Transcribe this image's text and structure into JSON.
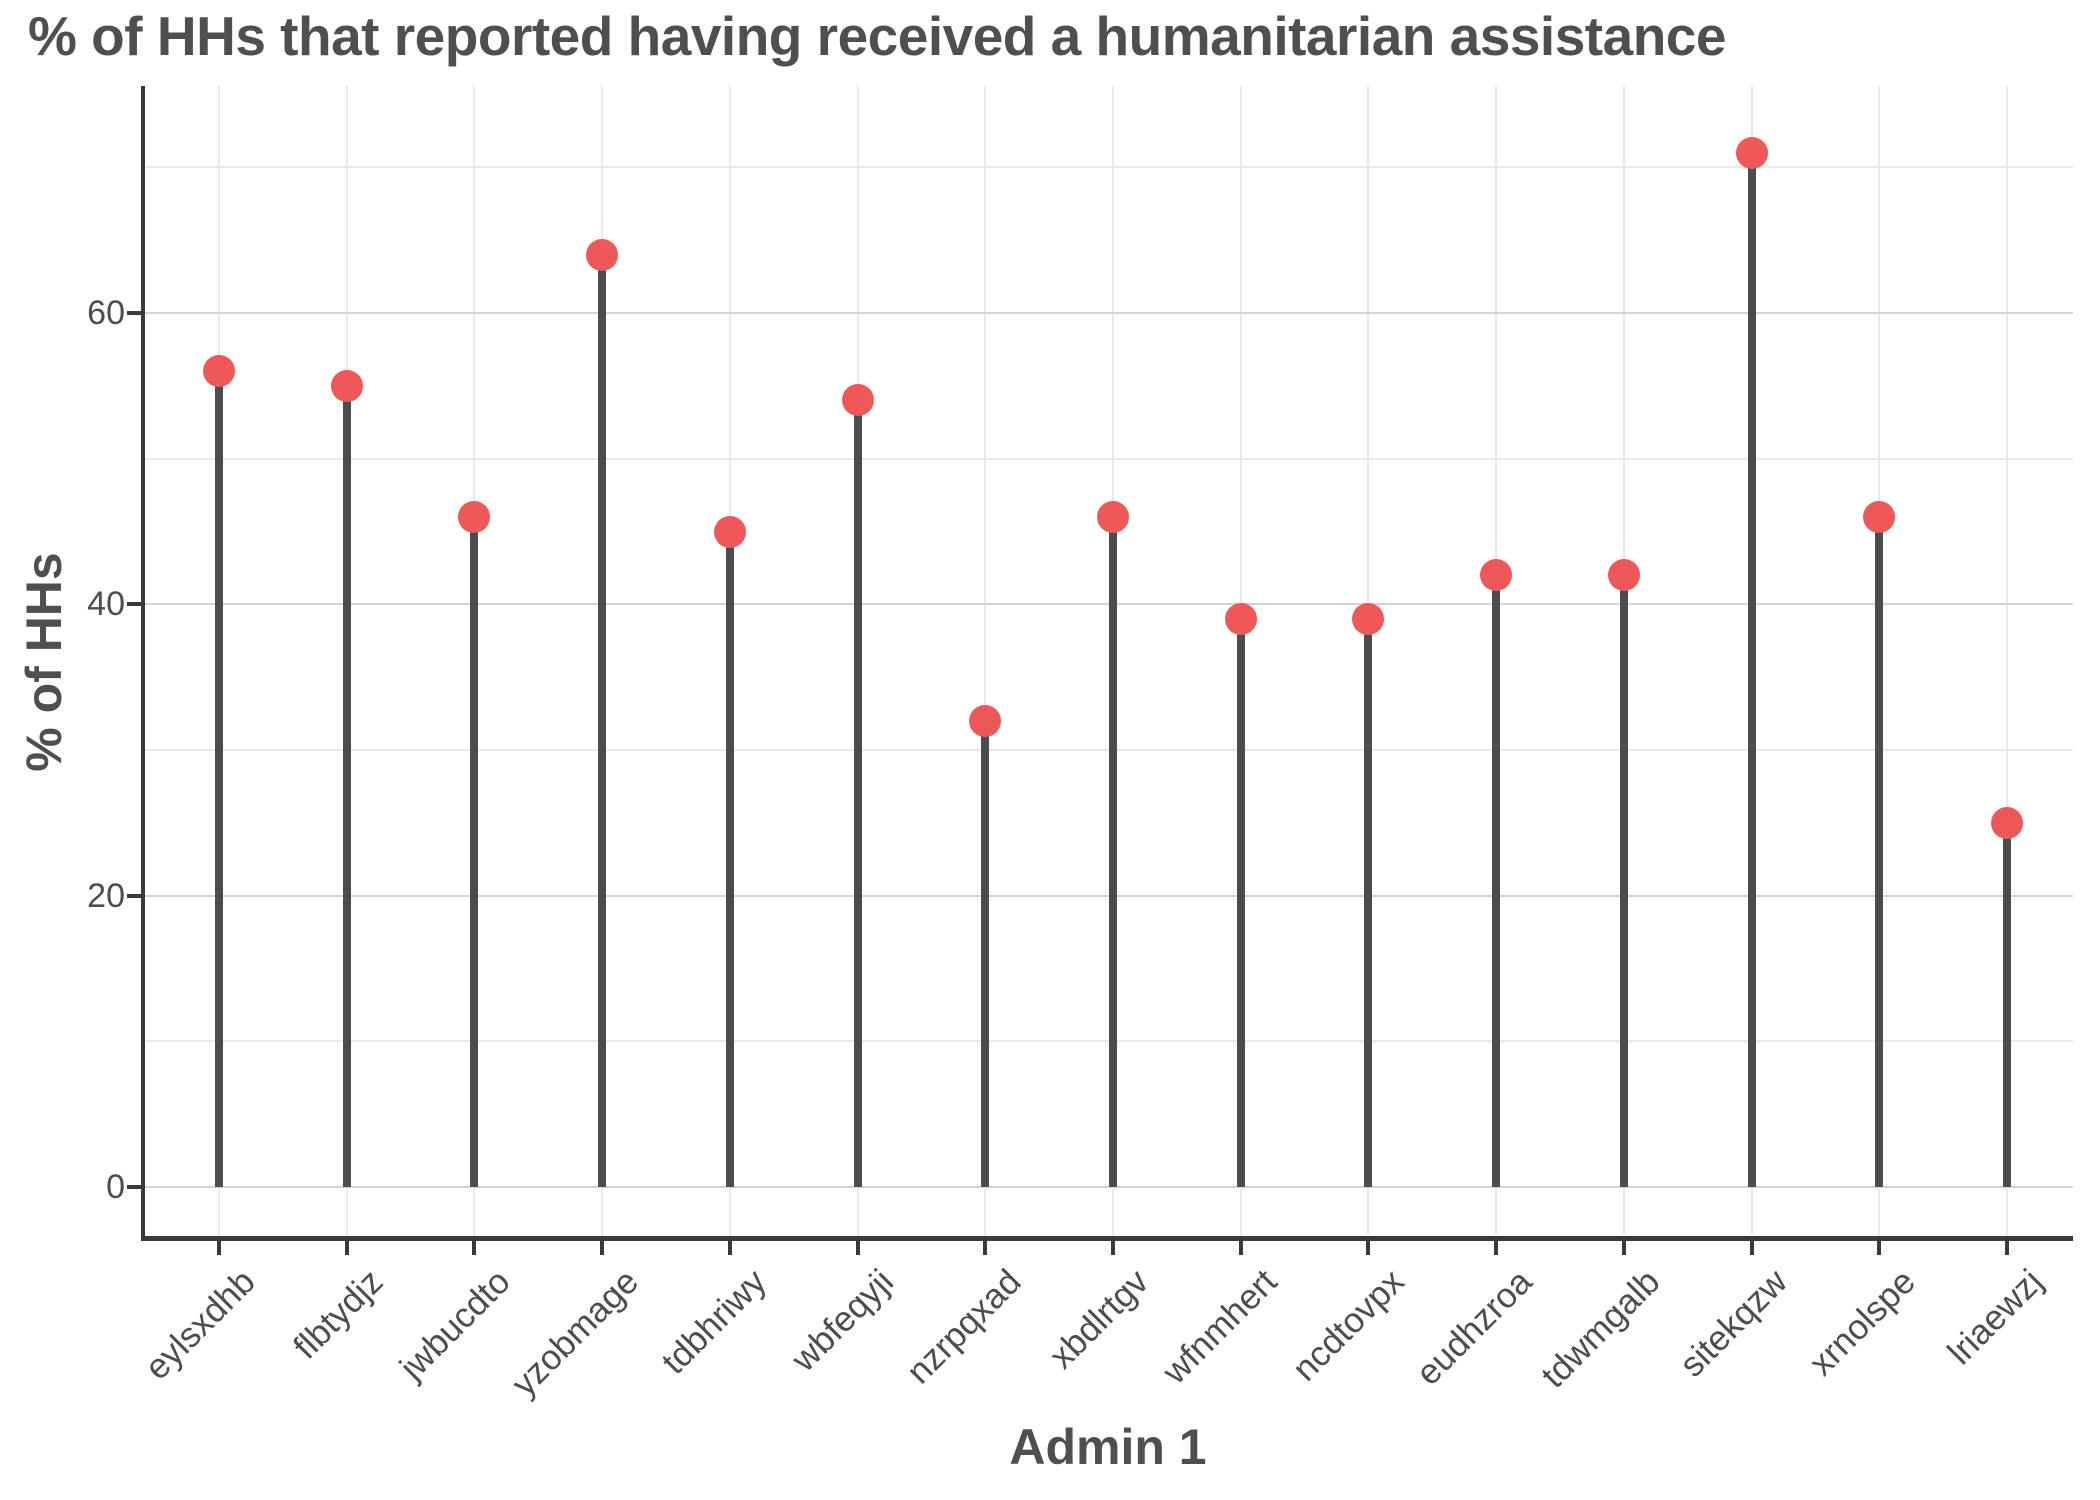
{
  "chart_data": {
    "type": "bar",
    "variant": "lollipop",
    "title": "% of HHs that reported having received a humanitarian assistance",
    "xlabel": "Admin 1",
    "ylabel": "% of HHs",
    "categories": [
      "eylsxdhb",
      "flbtydjz",
      "jwbucdto",
      "yzobmage",
      "tdbhriwy",
      "wbfeqyji",
      "nzrpqxad",
      "xbdlrtgv",
      "wfnmhert",
      "ncdtovpx",
      "eudhzroa",
      "tdwmgalb",
      "sitekqzw",
      "xrnolspe",
      "lriaewzj"
    ],
    "values": [
      56,
      55,
      46,
      64,
      45,
      54,
      32,
      46,
      39,
      39,
      42,
      42,
      71,
      46,
      25
    ],
    "ylim": [
      0,
      75
    ],
    "yticks": [
      0,
      20,
      40,
      60
    ],
    "minor_gridlines": [
      10,
      30,
      50,
      70
    ],
    "grid": "on",
    "legend": "none",
    "colors": {
      "point": "#ee5859",
      "stem": "#4c4c4c",
      "axis_line": "#3a3a3a",
      "text": "#4d4d4d",
      "grid_major": "#d4d4d4",
      "grid_minor": "#e9e9e9"
    }
  }
}
